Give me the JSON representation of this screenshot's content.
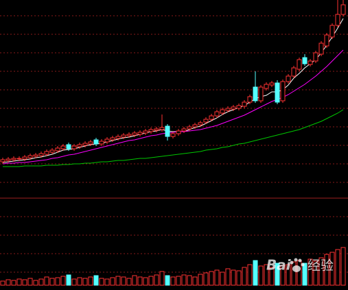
{
  "watermark": {
    "brand": "Bai",
    "text": "经验"
  },
  "chart_data": {
    "type": "candlestick",
    "ylim": [
      0,
      289
    ],
    "volume_ylim": [
      0,
      60
    ],
    "up_color": "#ff3232",
    "down_color": "#54ffff",
    "open": [
      53,
      55,
      56,
      57,
      57,
      59,
      61,
      62,
      64,
      67,
      69,
      72,
      78,
      72,
      75,
      77,
      79,
      85,
      79,
      82,
      85,
      87,
      89,
      91,
      92,
      93,
      95,
      97,
      99,
      100,
      105,
      90,
      94,
      98,
      101,
      104,
      107,
      111,
      115,
      120,
      124,
      128,
      130,
      131,
      134,
      140,
      162,
      142,
      160,
      165,
      168,
      142,
      170,
      178,
      188,
      205,
      195,
      200,
      210,
      222,
      235,
      252,
      268
    ],
    "high": [
      59,
      60,
      61,
      61,
      63,
      65,
      66,
      68,
      71,
      73,
      76,
      79,
      81,
      79,
      81,
      83,
      85,
      88,
      86,
      89,
      91,
      93,
      95,
      96,
      98,
      99,
      101,
      103,
      104,
      122,
      108,
      97,
      101,
      104,
      107,
      110,
      113,
      118,
      123,
      129,
      132,
      134,
      136,
      138,
      143,
      151,
      185,
      165,
      169,
      171,
      172,
      173,
      181,
      193,
      205,
      210,
      203,
      215,
      229,
      241,
      255,
      290,
      300
    ],
    "low": [
      50,
      52,
      53,
      54,
      54,
      56,
      58,
      59,
      61,
      64,
      66,
      69,
      69,
      69,
      72,
      74,
      76,
      76,
      76,
      79,
      82,
      84,
      86,
      88,
      89,
      90,
      92,
      94,
      96,
      97,
      84,
      87,
      91,
      95,
      98,
      101,
      104,
      108,
      112,
      117,
      121,
      125,
      127,
      128,
      131,
      137,
      139,
      139,
      157,
      162,
      137,
      139,
      167,
      175,
      185,
      193,
      192,
      197,
      207,
      219,
      232,
      249,
      265
    ],
    "close": [
      56,
      57,
      58,
      58,
      60,
      62,
      63,
      65,
      68,
      70,
      73,
      76,
      72,
      76,
      78,
      80,
      82,
      79,
      83,
      86,
      88,
      90,
      92,
      93,
      95,
      96,
      98,
      100,
      101,
      103,
      90,
      94,
      98,
      101,
      104,
      107,
      110,
      115,
      120,
      126,
      129,
      131,
      133,
      135,
      140,
      148,
      142,
      162,
      166,
      168,
      140,
      170,
      178,
      190,
      202,
      196,
      200,
      212,
      226,
      238,
      252,
      268,
      282
    ],
    "volume": [
      6,
      8,
      7,
      9,
      8,
      10,
      7,
      9,
      12,
      10,
      11,
      13,
      15,
      9,
      11,
      10,
      12,
      14,
      10,
      9,
      11,
      13,
      12,
      10,
      14,
      12,
      11,
      13,
      15,
      20,
      14,
      12,
      13,
      15,
      14,
      12,
      16,
      18,
      20,
      22,
      19,
      24,
      22,
      21,
      26,
      30,
      36,
      28,
      30,
      26,
      32,
      29,
      30,
      34,
      36,
      32,
      38,
      35,
      40,
      45,
      48,
      52,
      55
    ],
    "series": [
      {
        "color": "#ffffff",
        "values": [
          52,
          53,
          54,
          55,
          56,
          57,
          59,
          60,
          62,
          64,
          67,
          70,
          71,
          72,
          74,
          76,
          78,
          79,
          80,
          82,
          84,
          86,
          88,
          89,
          91,
          93,
          95,
          97,
          98,
          100,
          98,
          97,
          97,
          97,
          100,
          103,
          105,
          109,
          113,
          117,
          122,
          126,
          129,
          132,
          135,
          140,
          145,
          148,
          150,
          155,
          155,
          158,
          165,
          175,
          182,
          190,
          196,
          202,
          212,
          223,
          235,
          248,
          262
        ]
      },
      {
        "color": "#ff00ff",
        "values": [
          50,
          51,
          51,
          52,
          52,
          53,
          54,
          55,
          56,
          58,
          59,
          61,
          63,
          64,
          66,
          68,
          70,
          72,
          74,
          76,
          78,
          80,
          82,
          84,
          85,
          87,
          89,
          91,
          92,
          94,
          95,
          96,
          97,
          97,
          98,
          99,
          100,
          102,
          104,
          106,
          109,
          112,
          115,
          118,
          121,
          125,
          129,
          133,
          137,
          141,
          144,
          147,
          151,
          156,
          161,
          166,
          172,
          178,
          185,
          192,
          200,
          208,
          216
        ]
      },
      {
        "color": "#00c800",
        "values": [
          46,
          46,
          46,
          46,
          47,
          47,
          47,
          47,
          48,
          48,
          48,
          49,
          49,
          50,
          50,
          51,
          51,
          52,
          53,
          53,
          54,
          55,
          55,
          56,
          57,
          58,
          58,
          59,
          60,
          61,
          62,
          63,
          64,
          65,
          66,
          67,
          68,
          70,
          71,
          72,
          74,
          75,
          77,
          79,
          80,
          82,
          84,
          86,
          88,
          90,
          92,
          94,
          96,
          98,
          100,
          103,
          106,
          109,
          112,
          116,
          120,
          124,
          129
        ]
      }
    ]
  }
}
